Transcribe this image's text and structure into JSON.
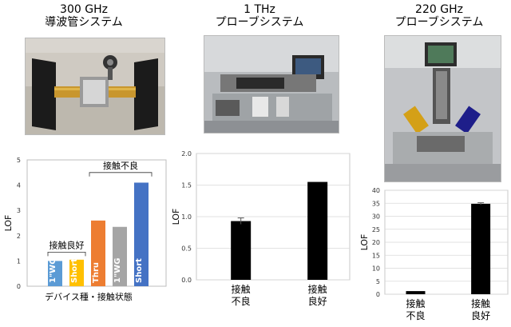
{
  "panels": [
    {
      "title_line1": "300 GHz",
      "title_line2": "導波管システム"
    },
    {
      "title_line1": "1 THz",
      "title_line2": "プローブシステム"
    },
    {
      "title_line1": "220 GHz",
      "title_line2": "プローブシステム"
    }
  ],
  "chart_data": [
    {
      "type": "bar",
      "ylabel": "LOF",
      "xlabel": "デバイス種・接触状態",
      "ylim": [
        0,
        5
      ],
      "yticks": [
        "0",
        "1",
        "2",
        "3",
        "4",
        "5"
      ],
      "categories": [
        "1\"WG",
        "Short",
        "Thru",
        "1\"WG",
        "Short"
      ],
      "values": [
        1.0,
        1.05,
        2.6,
        2.35,
        4.1
      ],
      "colors": [
        "#5B9BD5",
        "#FFC000",
        "#ED7D31",
        "#A5A5A5",
        "#4472C4"
      ],
      "group_labels": {
        "good": "接触良好",
        "bad": "接触不良"
      },
      "grid": false
    },
    {
      "type": "bar",
      "ylabel": "LOF",
      "ylim": [
        0,
        2.0
      ],
      "yticks": [
        "0.0",
        "0.5",
        "1.0",
        "1.5",
        "2.0"
      ],
      "categories": [
        [
          "接触",
          "不良"
        ],
        [
          "接触",
          "良好"
        ]
      ],
      "values": [
        0.93,
        1.55
      ],
      "errors": [
        0.05,
        0.0
      ],
      "colors": [
        "#000000",
        "#000000"
      ],
      "grid": true
    },
    {
      "type": "bar",
      "ylabel": "LOF",
      "ylim": [
        0,
        40
      ],
      "yticks": [
        "0",
        "5",
        "10",
        "15",
        "20",
        "25",
        "30",
        "35",
        "40"
      ],
      "categories": [
        [
          "接触",
          "不良"
        ],
        [
          "接触",
          "良好"
        ]
      ],
      "values": [
        1.2,
        34.8
      ],
      "errors": [
        0.0,
        0.4
      ],
      "colors": [
        "#000000",
        "#000000"
      ],
      "grid": true
    }
  ]
}
